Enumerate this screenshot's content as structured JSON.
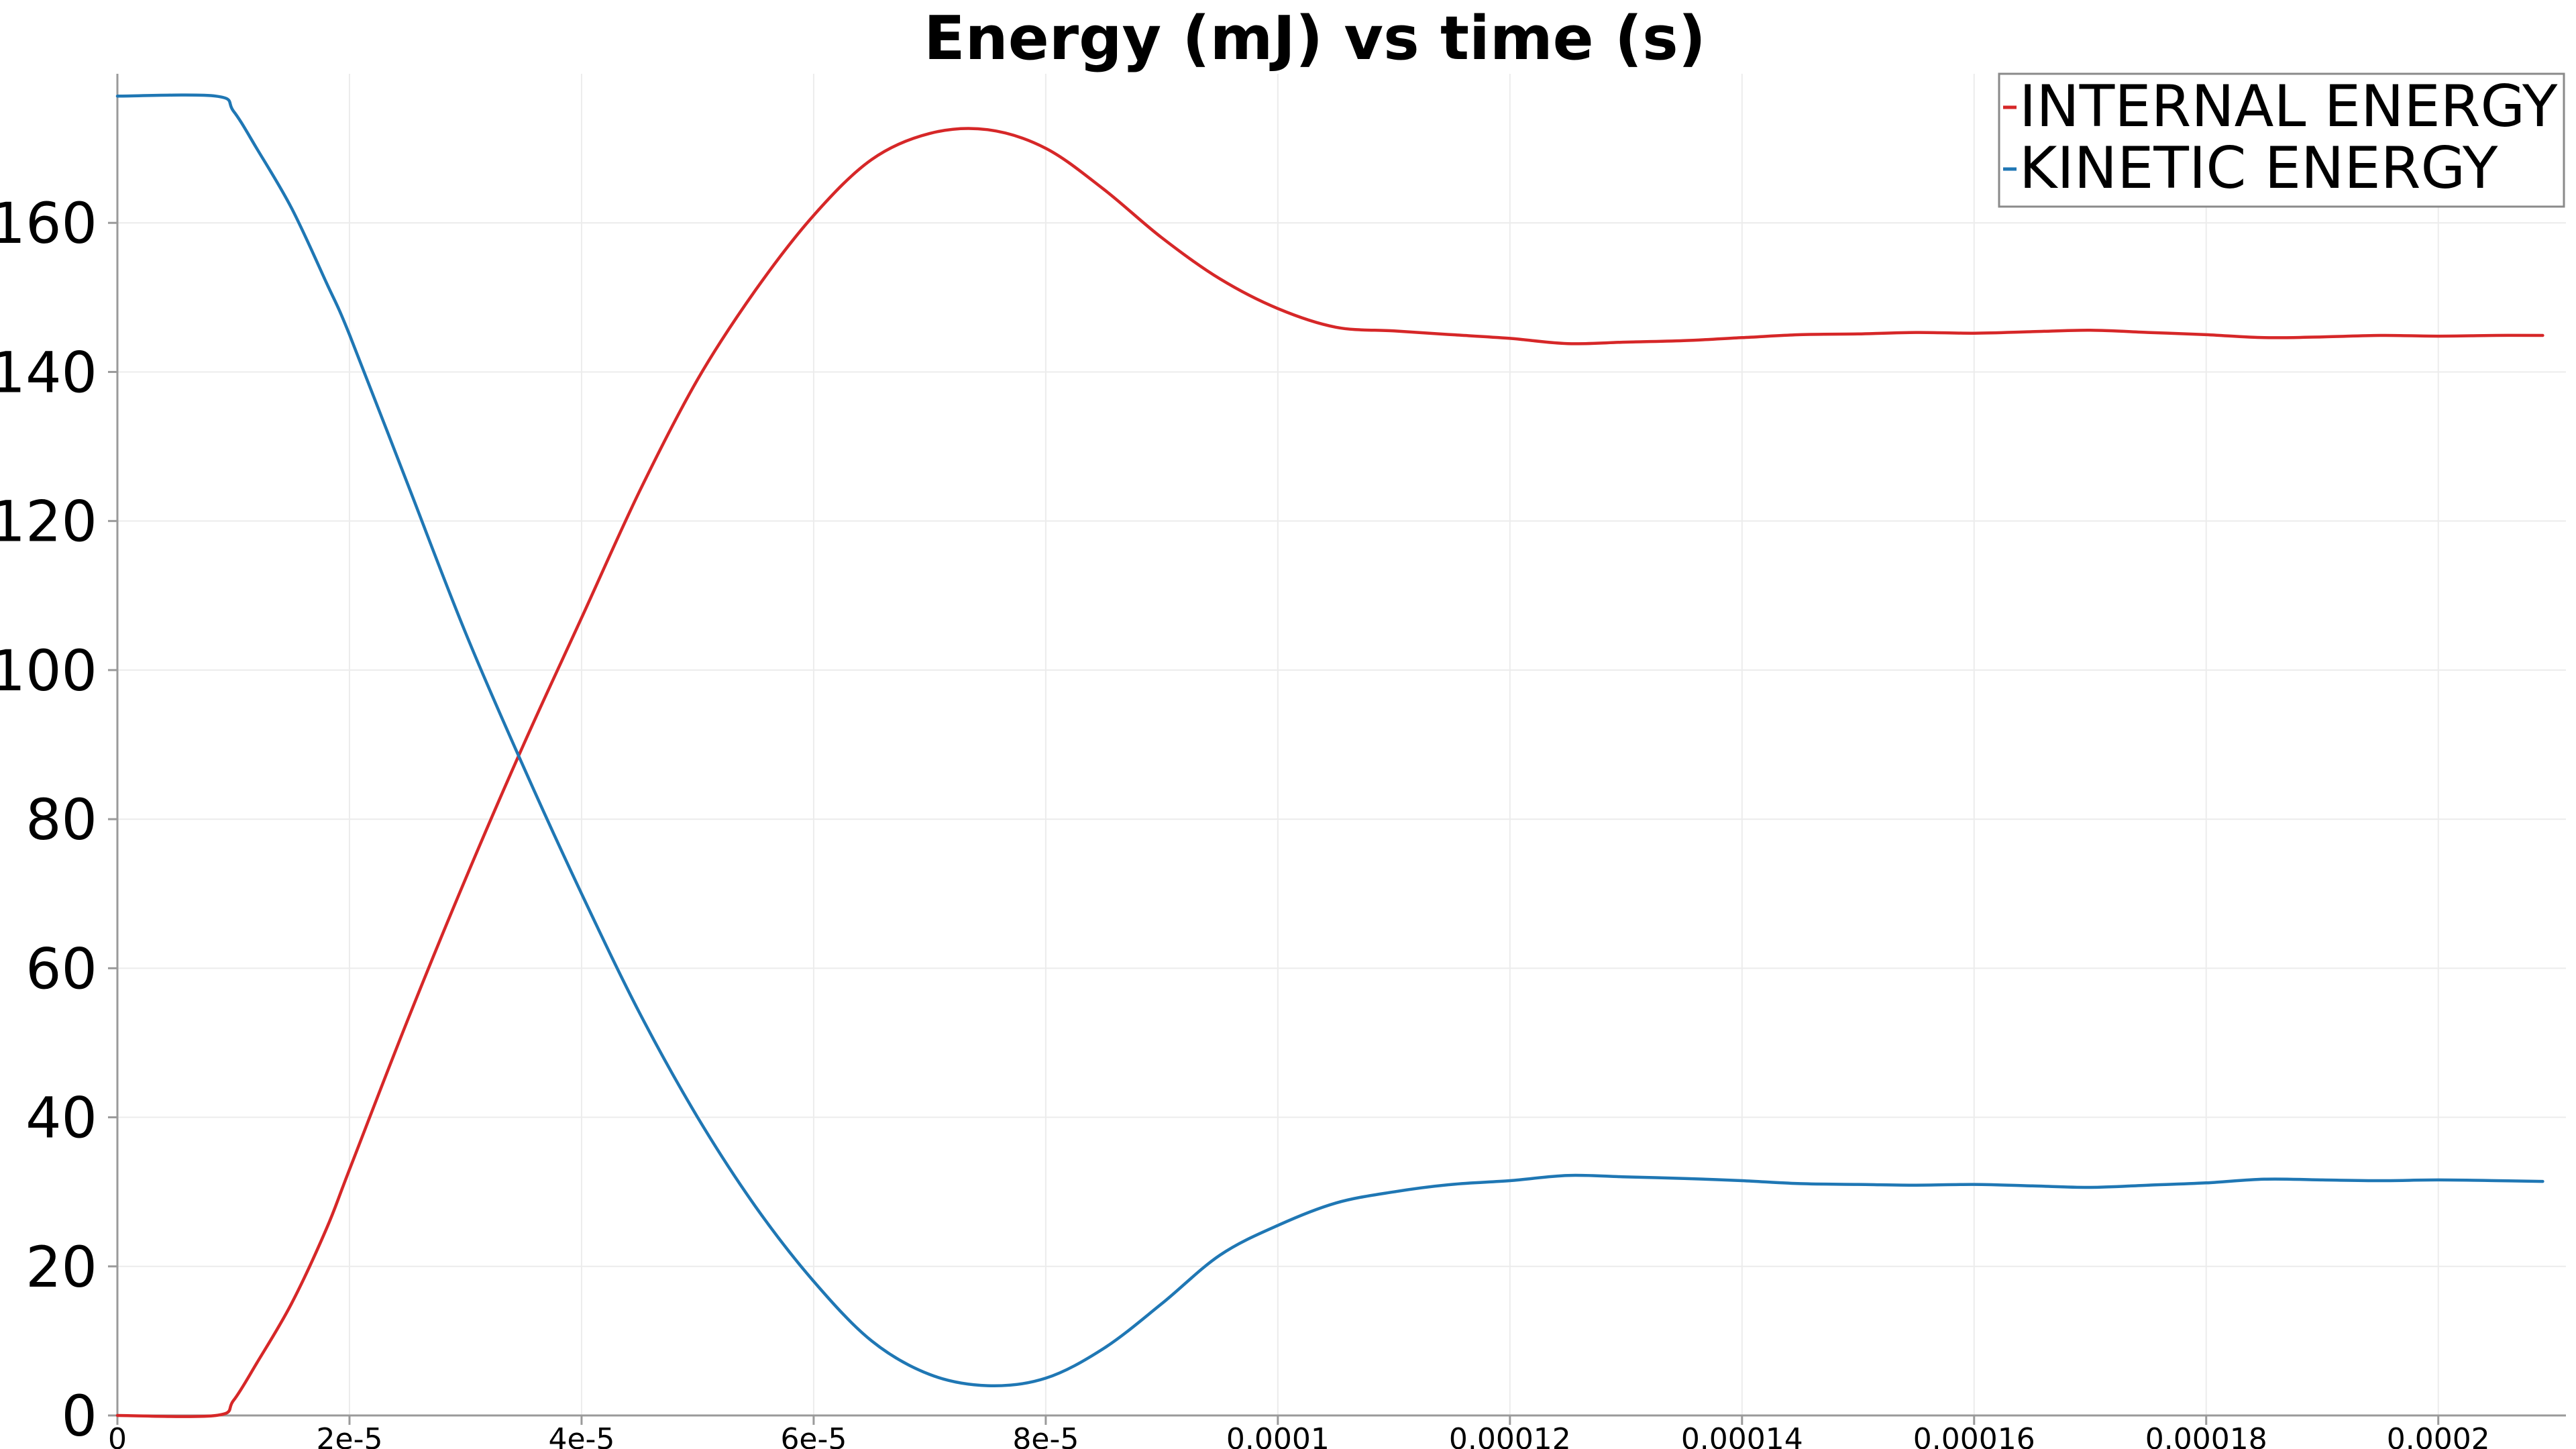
{
  "chart_data": {
    "type": "line",
    "title": "Energy (mJ) vs time (s)",
    "xlabel": "",
    "ylabel": "",
    "xlim": [
      0,
      0.000211
    ],
    "ylim": [
      0,
      180
    ],
    "xticks": [
      0,
      2e-05,
      4e-05,
      6e-05,
      8e-05,
      0.0001,
      0.00012,
      0.00014,
      0.00016,
      0.00018,
      0.0002
    ],
    "xtick_labels": [
      "0",
      "2e-5",
      "4e-5",
      "6e-5",
      "8e-5",
      "0.0001",
      "0.00012",
      "0.00014",
      "0.00016",
      "0.00018",
      "0.0002"
    ],
    "yticks": [
      0,
      20,
      40,
      60,
      80,
      100,
      120,
      140,
      160
    ],
    "ytick_labels": [
      "0",
      "20",
      "40",
      "60",
      "80",
      "100",
      "120",
      "140",
      "160"
    ],
    "grid": true,
    "legend_position": "top-right",
    "series": [
      {
        "name": "INTERNAL ENERGY",
        "color": "#d62728",
        "x": [
          0,
          8.5e-06,
          1e-05,
          1.2e-05,
          1.5e-05,
          1.8e-05,
          2e-05,
          2.5e-05,
          3e-05,
          3.5e-05,
          4e-05,
          4.5e-05,
          5e-05,
          5.5e-05,
          6e-05,
          6.5e-05,
          7e-05,
          7.5e-05,
          8e-05,
          8.5e-05,
          9e-05,
          9.5e-05,
          0.0001,
          0.000105,
          0.00011,
          0.000115,
          0.00012,
          0.000125,
          0.00013,
          0.000135,
          0.00014,
          0.000145,
          0.00015,
          0.000155,
          0.00016,
          0.000165,
          0.00017,
          0.000175,
          0.00018,
          0.000185,
          0.00019,
          0.000195,
          0.0002,
          0.000205,
          0.000209
        ],
        "values": [
          0,
          0,
          2,
          7,
          15,
          25,
          33,
          53,
          72,
          90,
          107,
          124,
          139,
          151,
          161,
          168.5,
          172,
          172.5,
          170,
          164.5,
          158,
          152.5,
          148.5,
          146,
          145.5,
          145,
          144.5,
          143.8,
          144,
          144.2,
          144.6,
          145,
          145.1,
          145.3,
          145.2,
          145.4,
          145.6,
          145.3,
          145,
          144.6,
          144.7,
          144.9,
          144.8,
          144.9,
          144.9
        ]
      },
      {
        "name": "KINETIC ENERGY",
        "color": "#1f77b4",
        "x": [
          0,
          8.5e-06,
          1e-05,
          1.2e-05,
          1.5e-05,
          1.8e-05,
          2e-05,
          2.5e-05,
          3e-05,
          3.5e-05,
          4e-05,
          4.5e-05,
          5e-05,
          5.5e-05,
          6e-05,
          6.5e-05,
          7e-05,
          7.5e-05,
          8e-05,
          8.5e-05,
          9e-05,
          9.5e-05,
          0.0001,
          0.000105,
          0.00011,
          0.000115,
          0.00012,
          0.000125,
          0.00013,
          0.000135,
          0.00014,
          0.000145,
          0.00015,
          0.000155,
          0.00016,
          0.000165,
          0.00017,
          0.000175,
          0.00018,
          0.000185,
          0.00019,
          0.000195,
          0.0002,
          0.000205,
          0.000209
        ],
        "values": [
          177,
          177,
          175,
          170,
          162,
          152,
          145,
          125,
          105,
          87,
          70,
          54,
          40,
          28,
          18,
          10,
          5.5,
          4,
          5,
          9,
          15,
          21.5,
          25.5,
          28.5,
          30,
          31,
          31.5,
          32.2,
          32,
          31.8,
          31.5,
          31.1,
          31,
          30.9,
          31,
          30.8,
          30.6,
          30.9,
          31.2,
          31.7,
          31.6,
          31.5,
          31.6,
          31.5,
          31.4
        ]
      }
    ]
  }
}
